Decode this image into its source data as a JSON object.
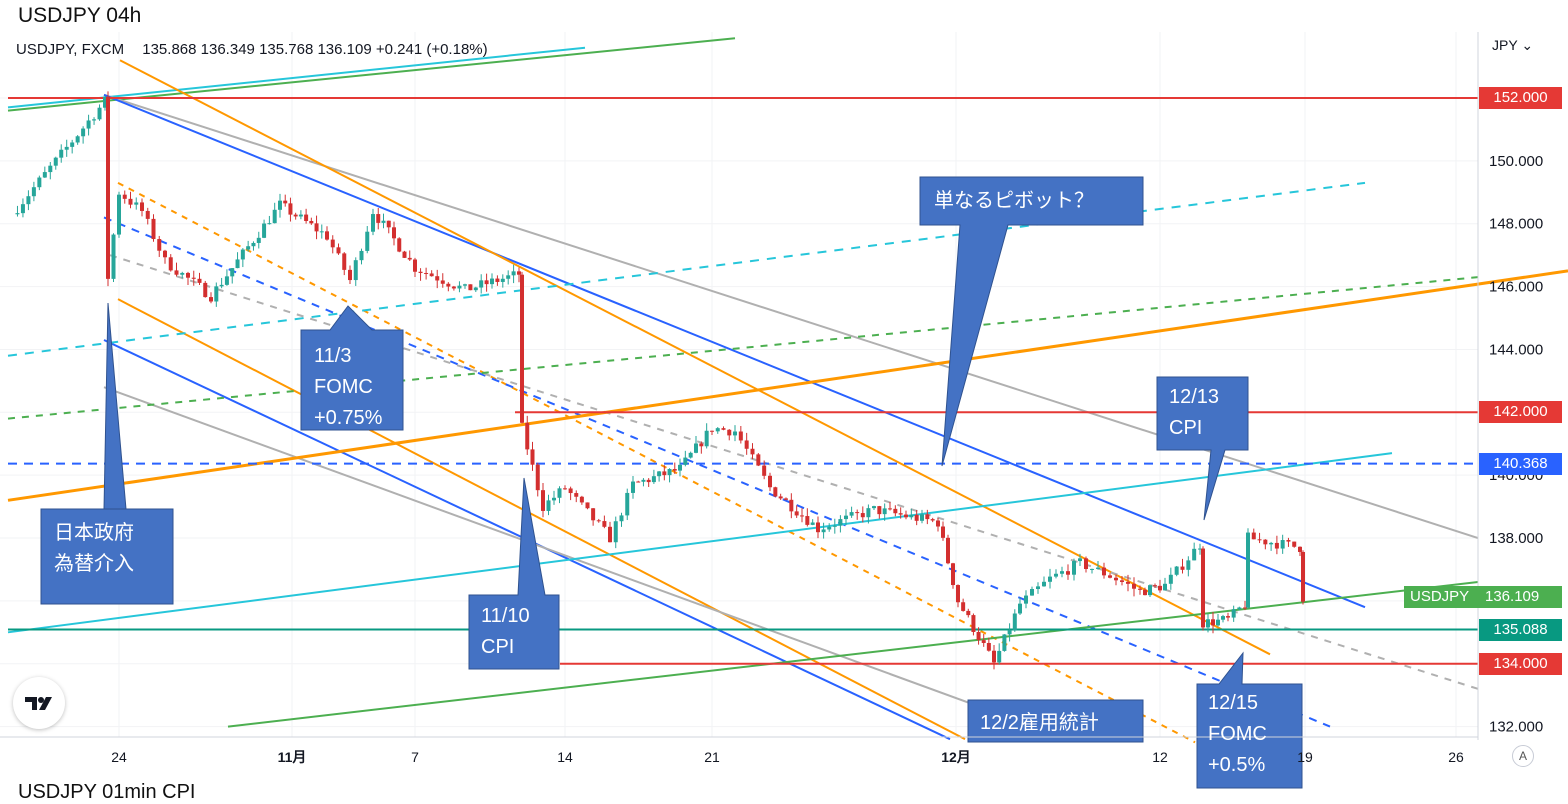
{
  "header": {
    "title": "USDJPY 04h",
    "footer_title": "USDJPY 01min CPI"
  },
  "legend": {
    "symbol": "USDJPY, FXCM",
    "open": "135.868",
    "high": "136.349",
    "low": "135.768",
    "close": "136.109",
    "change": "+0.241 (+0.18%)"
  },
  "currency_button": "JPY",
  "auto_button": "A",
  "colors": {
    "up": "#26a69a",
    "down": "#d32f2f",
    "callout": "#4472c4",
    "red_level": "#e53935",
    "blue_level": "#2962ff",
    "teal_level": "#089981"
  },
  "chart_data": {
    "type": "candlestick",
    "title": "USDJPY 04h",
    "symbol": "USDJPY, FXCM",
    "y_axis": {
      "ticks": [
        132,
        134,
        136,
        138,
        140,
        142,
        144,
        146,
        148,
        150,
        152
      ],
      "tick_labels": [
        "132.000",
        "134.000",
        "136.000",
        "138.000",
        "140.000",
        "142.000",
        "144.000",
        "146.000",
        "148.000",
        "150.000",
        "152.000"
      ],
      "range": [
        131.6,
        154.0
      ]
    },
    "x_axis": {
      "ticks": [
        "24",
        "11月",
        "7",
        "14",
        "21",
        "12月",
        "12",
        "19",
        "26"
      ],
      "bold": [
        "11月",
        "12月"
      ]
    },
    "price_labels": [
      {
        "value": "152.000",
        "color": "#e53935"
      },
      {
        "value": "142.000",
        "color": "#e53935"
      },
      {
        "value": "140.368",
        "color": "#2962ff"
      },
      {
        "value": "135.088",
        "color": "#089981"
      },
      {
        "value": "134.000",
        "color": "#e53935"
      },
      {
        "symbol": "USDJPY",
        "value": "136.109",
        "color": "#4caf50"
      }
    ],
    "horizontal_levels": [
      152.0,
      142.0,
      140.368,
      135.088,
      134.0
    ],
    "price_path": [
      [
        "10/20",
        148.3
      ],
      [
        "10/21",
        151.9
      ],
      [
        "10/21",
        146.3
      ],
      [
        "10/24",
        149.0
      ],
      [
        "10/25",
        148.4
      ],
      [
        "10/26",
        146.8
      ],
      [
        "10/28",
        145.7
      ],
      [
        "10/31",
        148.6
      ],
      [
        "11/2",
        147.6
      ],
      [
        "11/3",
        146.2
      ],
      [
        "11/4",
        148.4
      ],
      [
        "11/7",
        146.6
      ],
      [
        "11/9",
        145.9
      ],
      [
        "11/10",
        146.4
      ],
      [
        "11/10",
        141.5
      ],
      [
        "11/11",
        139.0
      ],
      [
        "11/14",
        139.6
      ],
      [
        "11/15",
        138.0
      ],
      [
        "11/16",
        139.7
      ],
      [
        "11/18",
        140.2
      ],
      [
        "11/21",
        141.5
      ],
      [
        "11/22",
        141.4
      ],
      [
        "11/23",
        139.6
      ],
      [
        "11/25",
        138.3
      ],
      [
        "11/28",
        138.9
      ],
      [
        "11/30",
        138.5
      ],
      [
        "12/1",
        136.0
      ],
      [
        "12/2",
        134.0
      ],
      [
        "12/5",
        135.9
      ],
      [
        "12/6",
        136.7
      ],
      [
        "12/7",
        137.2
      ],
      [
        "12/8",
        136.8
      ],
      [
        "12/9",
        136.3
      ],
      [
        "12/12",
        136.5
      ],
      [
        "12/13",
        137.8
      ],
      [
        "12/13",
        135.3
      ],
      [
        "12/14",
        135.4
      ],
      [
        "12/15",
        135.9
      ],
      [
        "12/15",
        138.0
      ],
      [
        "12/16",
        137.7
      ],
      [
        "12/16",
        136.109
      ]
    ]
  },
  "callouts": [
    {
      "lines": [
        "日本政府",
        "為替介入"
      ]
    },
    {
      "lines": [
        "11/3",
        "FOMC",
        "+0.75%"
      ]
    },
    {
      "lines": [
        "11/10",
        "CPI"
      ]
    },
    {
      "lines": [
        "単なるピボット？"
      ]
    },
    {
      "lines": [
        "12/13",
        "CPI"
      ]
    },
    {
      "lines": [
        "12/2雇用統計"
      ]
    },
    {
      "lines": [
        "12/15",
        "FOMC",
        "+0.5%"
      ]
    }
  ]
}
